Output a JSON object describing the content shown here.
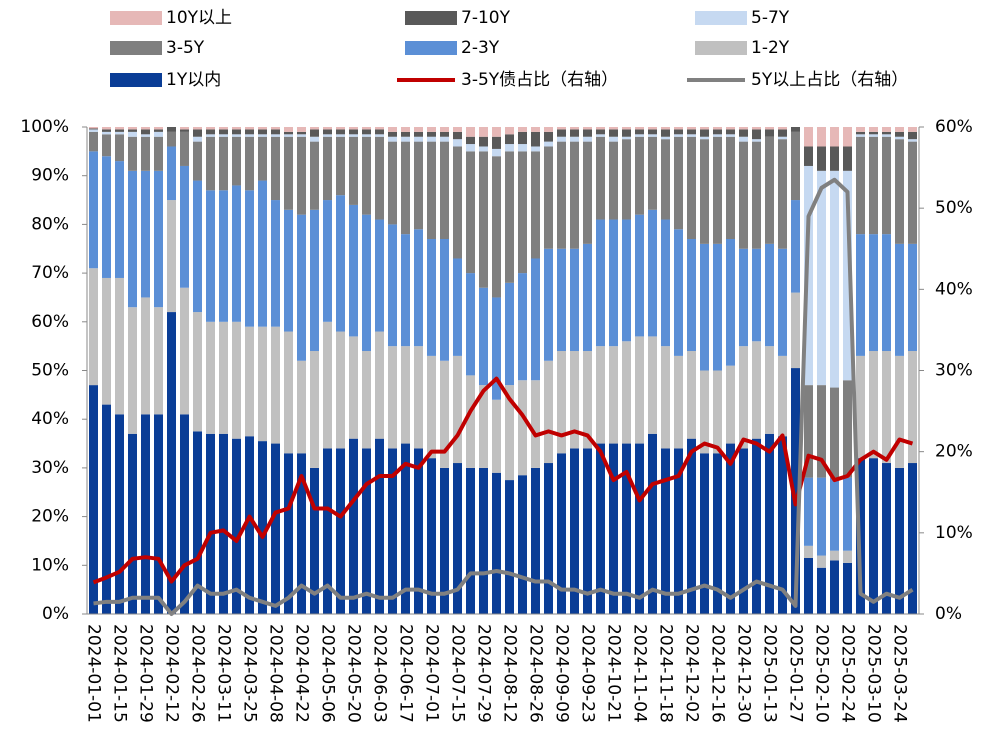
{
  "chart_data": {
    "type": "stacked_bar_line",
    "categories": [
      "2024-01-01",
      null,
      "2024-01-15",
      null,
      "2024-01-29",
      null,
      "2024-02-12",
      null,
      "2024-02-26",
      null,
      "2024-03-11",
      null,
      "2024-03-25",
      null,
      "2024-04-08",
      null,
      "2024-04-22",
      null,
      "2024-05-06",
      null,
      "2024-05-20",
      null,
      "2024-06-03",
      null,
      "2024-06-17",
      null,
      "2024-07-01",
      null,
      "2024-07-15",
      null,
      "2024-07-29",
      null,
      "2024-08-12",
      null,
      "2024-08-26",
      null,
      "2024-09-09",
      null,
      "2024-09-23",
      null,
      "2024-10-21",
      null,
      "2024-11-04",
      null,
      "2024-11-18",
      null,
      "2024-12-02",
      null,
      "2024-12-16",
      null,
      "2024-12-30",
      null,
      "2025-01-13",
      null,
      "2025-01-27",
      null,
      "2025-02-10",
      null,
      "2025-02-24",
      null,
      "2025-03-10",
      null,
      "2025-03-24",
      null
    ],
    "series": [
      {
        "name": "1Y以内",
        "color": "#0a3d96",
        "values": [
          47,
          43,
          41,
          37,
          41,
          41,
          62,
          41,
          37.5,
          37,
          37,
          36,
          36.5,
          35.5,
          35,
          33,
          33,
          30,
          34,
          34,
          36,
          34,
          36,
          34,
          35,
          34,
          32,
          30,
          31,
          30,
          30,
          29,
          27.5,
          28.5,
          30,
          31,
          33,
          34,
          34,
          35,
          35,
          35,
          35,
          37,
          34,
          34,
          36,
          33,
          33,
          35,
          34,
          36,
          37,
          36.5,
          50.5,
          11.5,
          9.5,
          11,
          10.5,
          32,
          32,
          31,
          30,
          31
        ]
      },
      {
        "name": "1-2Y",
        "color": "#c0c0c0",
        "values": [
          24,
          26,
          28,
          26,
          24,
          22,
          23,
          26,
          24.5,
          23,
          23,
          24,
          22.5,
          23.5,
          24,
          25,
          19,
          24,
          26,
          24,
          21,
          20,
          22,
          21,
          20,
          21,
          21,
          22,
          22,
          19,
          17,
          15,
          19.5,
          19.5,
          18,
          21,
          21,
          20,
          20,
          20,
          20,
          21,
          22,
          20,
          21,
          19,
          18,
          17,
          17,
          16,
          21,
          20,
          18,
          16.5,
          15.5,
          2.5,
          2.5,
          2,
          2.5,
          21,
          22,
          23,
          23,
          23
        ]
      },
      {
        "name": "2-3Y",
        "color": "#5b8fd6",
        "values": [
          24,
          25,
          24,
          28,
          26,
          28,
          11,
          25,
          27,
          27,
          27,
          28,
          28,
          30,
          26,
          25,
          30,
          29,
          25,
          28,
          27,
          28,
          23,
          25,
          23,
          24,
          24,
          25,
          20,
          21,
          20,
          21,
          21,
          22,
          25,
          23,
          21,
          21,
          22,
          26,
          26,
          25,
          25,
          26,
          26,
          26,
          23,
          26,
          26,
          26,
          20,
          19,
          21,
          22,
          19,
          14,
          16,
          15,
          15,
          25,
          24,
          24,
          23,
          22
        ]
      },
      {
        "name": "3-5Y",
        "color": "#7f7f7f",
        "values": [
          4,
          4.5,
          5.5,
          7,
          7,
          7,
          3,
          7,
          8,
          11,
          11,
          10,
          11,
          9,
          13,
          15,
          16,
          14,
          13,
          12,
          14,
          16,
          17,
          17,
          19,
          18,
          20,
          20,
          23,
          25,
          28,
          29,
          27,
          25,
          22,
          21,
          22,
          22,
          21,
          17,
          16,
          16.5,
          16,
          15,
          16.5,
          19,
          21,
          21.5,
          22,
          21,
          22,
          22,
          22,
          22.5,
          14,
          19,
          19,
          18.5,
          20,
          20,
          20,
          20,
          21.5,
          21
        ]
      },
      {
        "name": "5-7Y",
        "color": "#c6d9f1",
        "values": [
          0.5,
          0.5,
          0.5,
          1,
          0.5,
          1,
          0,
          0,
          1,
          0.5,
          0.5,
          0.5,
          0.5,
          0.5,
          0.5,
          0.5,
          0.5,
          1,
          0.5,
          0.5,
          0.5,
          0.5,
          0.5,
          1,
          1,
          1,
          1,
          1,
          1.5,
          1.5,
          1,
          1.5,
          1.5,
          1.5,
          1,
          1,
          1,
          1,
          1,
          0.5,
          1,
          0.5,
          0.5,
          0.5,
          0.5,
          0.5,
          0.5,
          0.5,
          0.5,
          0.5,
          1,
          0.5,
          0,
          0.5,
          0,
          45,
          44,
          44.5,
          43,
          0.5,
          0.5,
          0.5,
          0.5,
          0.5
        ]
      },
      {
        "name": "7-10Y",
        "color": "#595959",
        "values": [
          0.2,
          0.5,
          0.5,
          0.5,
          1,
          0.5,
          1,
          0.5,
          1.5,
          1,
          1,
          1,
          1,
          1,
          1,
          0.5,
          0.5,
          1.5,
          1,
          1,
          1,
          1,
          1,
          1,
          1,
          1,
          1,
          1,
          1.5,
          1.5,
          2,
          2.5,
          2,
          2.5,
          3,
          2,
          1.5,
          1.5,
          1.5,
          1,
          1.5,
          1.5,
          1,
          1,
          1.5,
          1,
          1,
          1.5,
          1,
          1,
          1.5,
          2,
          1.5,
          1.5,
          1,
          4,
          5,
          5,
          5,
          0.5,
          0.5,
          0.5,
          1,
          1.5
        ]
      },
      {
        "name": "10Y以上",
        "color": "#e6b8b7",
        "values": [
          0.3,
          0.5,
          0.5,
          0.5,
          0.5,
          0.5,
          0,
          0.5,
          0.5,
          0.5,
          0.5,
          0.5,
          0.5,
          0.5,
          0.5,
          1,
          1,
          0.5,
          0.5,
          0.5,
          0.5,
          0.5,
          0.5,
          1,
          1,
          1,
          1,
          1,
          1,
          2,
          2,
          2,
          1.5,
          1,
          1,
          1,
          0.5,
          0.5,
          0.5,
          0.5,
          0.5,
          0.5,
          0.5,
          0.5,
          0.5,
          0.5,
          0.5,
          0.5,
          0.5,
          0.5,
          0.5,
          0.5,
          0.5,
          0.5,
          0,
          4,
          4,
          4,
          4,
          1,
          1,
          1,
          1,
          1
        ]
      },
      {
        "name": "3-5Y债占比（右轴）",
        "type": "line",
        "axis": "y2",
        "color": "#c00000",
        "values": [
          3.9,
          4.5,
          5.2,
          6.8,
          7,
          6.8,
          4,
          6,
          6.8,
          10,
          10.3,
          9,
          12,
          9.5,
          12.5,
          13,
          17,
          13,
          13,
          12,
          14,
          16,
          17,
          17,
          18.5,
          18,
          20,
          20,
          22,
          25,
          27.5,
          29,
          26.5,
          24.5,
          22,
          22.5,
          22,
          22.5,
          22,
          20,
          16.5,
          17.5,
          14,
          16,
          16.5,
          17,
          20,
          21,
          20.5,
          18.5,
          21.5,
          21,
          20,
          22,
          13.5,
          19.5,
          19,
          16.5,
          17,
          19,
          20,
          19,
          21.5,
          21
        ]
      },
      {
        "name": "5Y以上占比（右轴）",
        "type": "line",
        "axis": "y2",
        "color": "#808080",
        "values": [
          1.3,
          1.5,
          1.5,
          2,
          2,
          2,
          0,
          1.5,
          3.5,
          2.5,
          2.5,
          3,
          2,
          1.5,
          1,
          2,
          3.5,
          2.5,
          3.5,
          2,
          2,
          2.5,
          2,
          2,
          3,
          3,
          2.5,
          2.5,
          3,
          5,
          5,
          5.3,
          5,
          4.5,
          4,
          4,
          3,
          3,
          2.5,
          3,
          2.5,
          2.5,
          2,
          3,
          2.5,
          2.5,
          3,
          3.5,
          3,
          2,
          3,
          4,
          3.5,
          3,
          1,
          49,
          52.5,
          53.5,
          52,
          2.5,
          1.5,
          2.5,
          2,
          3
        ]
      }
    ],
    "ylim": [
      0,
      100
    ],
    "yticks": [
      {
        "value": 0,
        "label": "0%"
      },
      {
        "value": 10,
        "label": "10%"
      },
      {
        "value": 20,
        "label": "20%"
      },
      {
        "value": 30,
        "label": "30%"
      },
      {
        "value": 40,
        "label": "40%"
      },
      {
        "value": 50,
        "label": "50%"
      },
      {
        "value": 60,
        "label": "60%"
      },
      {
        "value": 70,
        "label": "70%"
      },
      {
        "value": 80,
        "label": "80%"
      },
      {
        "value": 90,
        "label": "90%"
      },
      {
        "value": 100,
        "label": "100%"
      }
    ],
    "y2lim": [
      0,
      60
    ],
    "y2ticks": [
      {
        "value": 0,
        "label": "0%"
      },
      {
        "value": 10,
        "label": "10%"
      },
      {
        "value": 20,
        "label": "20%"
      },
      {
        "value": 30,
        "label": "30%"
      },
      {
        "value": 40,
        "label": "40%"
      },
      {
        "value": 50,
        "label": "50%"
      },
      {
        "value": 60,
        "label": "60%"
      }
    ],
    "legend": "top"
  }
}
